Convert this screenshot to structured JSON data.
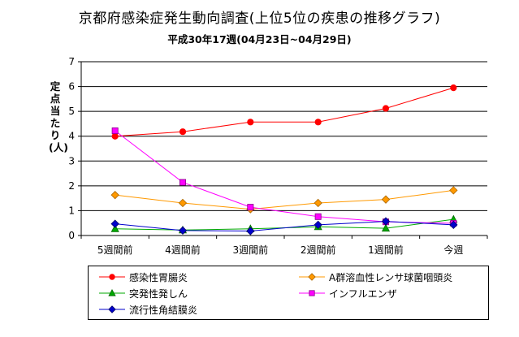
{
  "chart_data": {
    "type": "line",
    "title": "京都府感染症発生動向調査(上位5位の疾患の推移グラフ)",
    "subtitle": "平成30年17週(04月23日~04月29日)",
    "ylabel": "定点当たり(人)",
    "xlabel": "",
    "categories": [
      "5週間前",
      "4週間前",
      "3週間前",
      "2週間前",
      "1週間前",
      "今週"
    ],
    "ylim": [
      0,
      7
    ],
    "yticks": [
      0,
      1,
      2,
      3,
      4,
      5,
      6,
      7
    ],
    "grid": true,
    "legend_position": "bottom",
    "series": [
      {
        "name": "感染性胃腸炎",
        "color": "#ff0000",
        "marker": "circle",
        "values": [
          4.0,
          4.18,
          4.57,
          4.57,
          5.12,
          5.95
        ]
      },
      {
        "name": "A群溶血性レンサ球菌咽頭炎",
        "color": "#ff9900",
        "marker": "diamond",
        "values": [
          1.63,
          1.31,
          1.06,
          1.31,
          1.45,
          1.82
        ]
      },
      {
        "name": "突発性発しん",
        "color": "#00aa00",
        "marker": "triangle",
        "values": [
          0.27,
          0.22,
          0.27,
          0.35,
          0.29,
          0.65
        ]
      },
      {
        "name": "インフルエンザ",
        "color": "#ff00ff",
        "marker": "square",
        "values": [
          4.22,
          2.14,
          1.14,
          0.76,
          0.55,
          0.49
        ]
      },
      {
        "name": "流行性角結膜炎",
        "color": "#0000cc",
        "marker": "diamond",
        "values": [
          0.47,
          0.2,
          0.18,
          0.43,
          0.57,
          0.43
        ]
      }
    ]
  }
}
